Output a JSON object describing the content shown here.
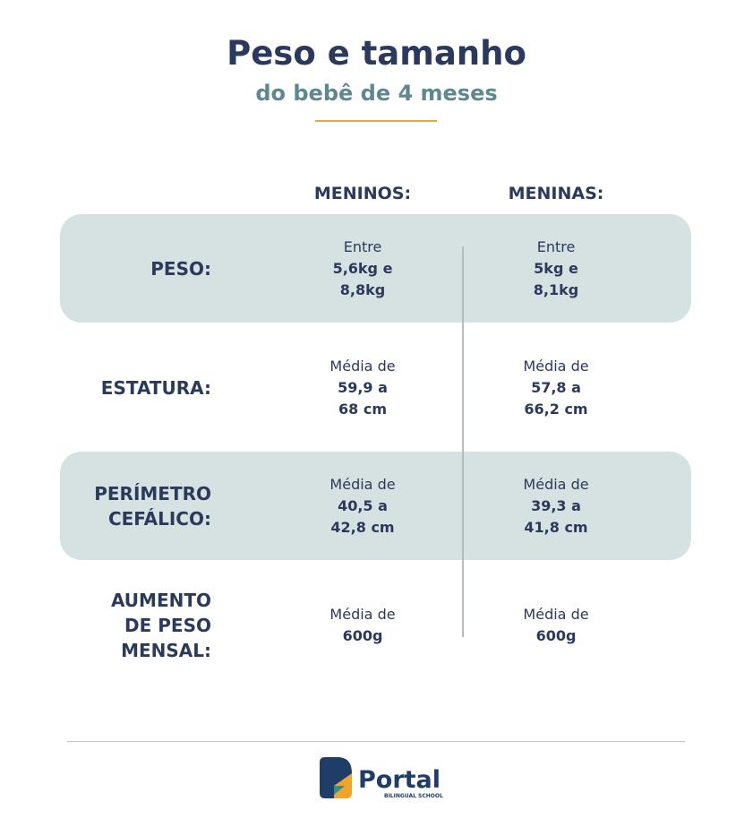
{
  "header": {
    "title": "Peso e tamanho",
    "subtitle": "do bebê de 4 meses"
  },
  "table": {
    "columns": [
      "MENINOS:",
      "MENINAS:"
    ],
    "rows": [
      {
        "label": [
          "PESO:"
        ],
        "cells": [
          {
            "intro": "Entre",
            "value": [
              "5,6kg e",
              "8,8kg"
            ]
          },
          {
            "intro": "Entre",
            "value": [
              "5kg e",
              "8,1kg"
            ]
          }
        ]
      },
      {
        "label": [
          "ESTATURA:"
        ],
        "cells": [
          {
            "intro": "Média de",
            "value": [
              "59,9 a",
              "68 cm"
            ]
          },
          {
            "intro": "Média de",
            "value": [
              "57,8 a",
              "66,2 cm"
            ]
          }
        ]
      },
      {
        "label": [
          "PERÍMETRO",
          "CEFÁLICO:"
        ],
        "cells": [
          {
            "intro": "Média de",
            "value": [
              "40,5 a",
              "42,8 cm"
            ]
          },
          {
            "intro": "Média de",
            "value": [
              "39,3 a",
              "41,8 cm"
            ]
          }
        ]
      },
      {
        "label": [
          "AUMENTO",
          "DE PESO",
          "MENSAL:"
        ],
        "cells": [
          {
            "intro": "Média de",
            "value": [
              "600g"
            ]
          },
          {
            "intro": "Média de",
            "value": [
              "600g"
            ]
          }
        ]
      }
    ]
  },
  "footer": {
    "logo": "Portal",
    "tagline": "BILINGUAL SCHOOL"
  }
}
